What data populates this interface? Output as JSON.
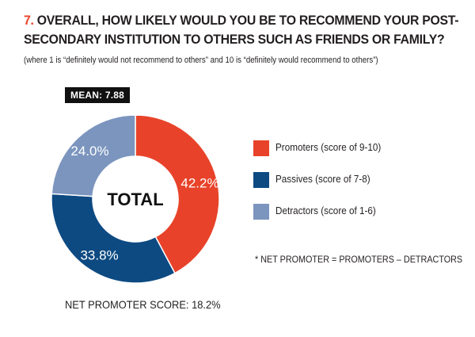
{
  "question": {
    "number": "7.",
    "line1": "OVERALL, HOW LIKELY WOULD YOU BE TO RECOMMEND YOUR POST-",
    "line2": "SECONDARY INSTITUTION TO OTHERS SUCH AS FRIENDS OR FAMILY?"
  },
  "subtitle": "(where 1 is “definitely would not recommend to others” and 10 is “definitely would recommend to others”)",
  "mean_badge": "MEAN: 7.88",
  "footnote": "* NET PROMOTER = PROMOTERS – DETRACTORS",
  "net_promoter": {
    "label": "NET PROMOTER SCORE:",
    "value": "18.2%"
  },
  "colors": {
    "promoters": "#e8432a",
    "passives": "#0d4a82",
    "detractors": "#7b95be"
  },
  "chart_data": {
    "type": "pie",
    "center_label": "TOTAL",
    "categories": [
      "Promoters (score of 9-10)",
      "Passives (score of 7-8)",
      "Detractors (score of 1-6)"
    ],
    "values": [
      42.2,
      33.8,
      24.0
    ],
    "labels": [
      "42.2%",
      "33.8%",
      "24.0%"
    ],
    "legend_position": "right"
  }
}
